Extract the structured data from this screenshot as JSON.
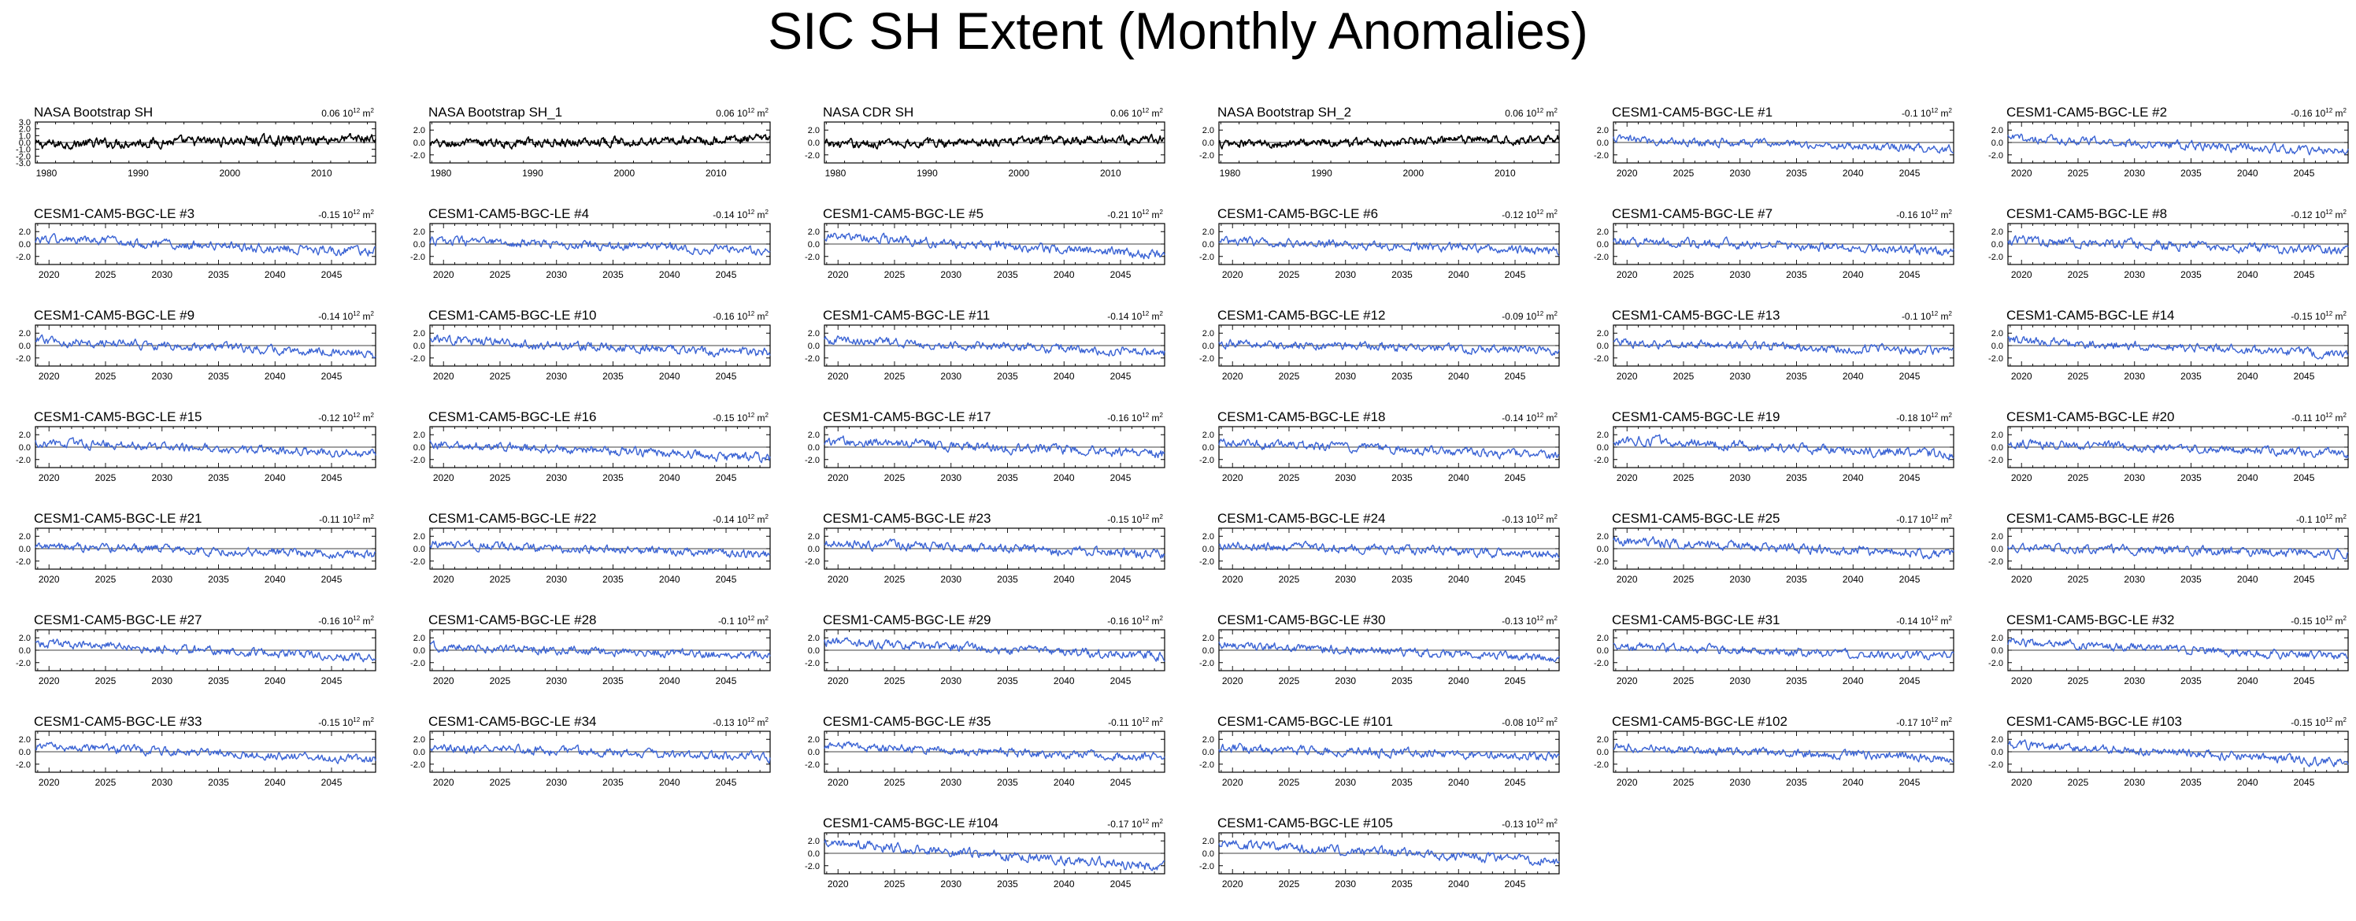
{
  "title": "SIC SH Extent (Monthly Anomalies)",
  "colors": {
    "observation_line": "#000000",
    "model_line": "#3a63d4",
    "axis": "#000000",
    "zero_line": "#000000"
  },
  "unit_base": "10",
  "unit_exp": "12",
  "unit_suffix": "m",
  "unit_suffix_exp": "2",
  "chart_data": [
    {
      "type": "line",
      "panel": "NASA Bootstrap SH",
      "trend": "0.06",
      "series_kind": "observation",
      "x_range": [
        1978.8,
        2015.9
      ],
      "y_range": [
        -3,
        3
      ],
      "xticks": [
        1980,
        1990,
        2000,
        2010
      ],
      "yticks": [
        3.0,
        2.0,
        1.0,
        0.0,
        -1.0,
        -2.0,
        -3.0
      ],
      "ytick_labels": [
        "3.0",
        "2.0",
        "1.0",
        "0.0",
        "-1.0",
        "-2.0",
        "-3.0"
      ],
      "start_value": -0.3,
      "end_value": 0.6,
      "amplitude": 0.55
    },
    {
      "type": "line",
      "panel": "NASA Bootstrap SH_1",
      "trend": "0.06",
      "series_kind": "observation",
      "x_range": [
        1978.8,
        2015.9
      ],
      "y_range": [
        -3.3,
        3.3
      ],
      "xticks": [
        1980,
        1990,
        2000,
        2010
      ],
      "yticks": [
        2.0,
        0.0,
        -2.0
      ],
      "ytick_labels": [
        "2.0",
        "0.0",
        "-2.0"
      ],
      "start_value": -0.3,
      "end_value": 0.6,
      "amplitude": 0.55
    },
    {
      "type": "line",
      "panel": "NASA CDR SH",
      "trend": "0.06",
      "series_kind": "observation",
      "x_range": [
        1978.8,
        2015.9
      ],
      "y_range": [
        -3.3,
        3.3
      ],
      "xticks": [
        1980,
        1990,
        2000,
        2010
      ],
      "yticks": [
        2.0,
        0.0,
        -2.0
      ],
      "ytick_labels": [
        "2.0",
        "0.0",
        "-2.0"
      ],
      "start_value": -0.3,
      "end_value": 0.6,
      "amplitude": 0.55
    },
    {
      "type": "line",
      "panel": "NASA Bootstrap SH_2",
      "trend": "0.06",
      "series_kind": "observation",
      "x_range": [
        1978.8,
        2015.9
      ],
      "y_range": [
        -3.3,
        3.3
      ],
      "xticks": [
        1980,
        1990,
        2000,
        2010
      ],
      "yticks": [
        2.0,
        0.0,
        -2.0
      ],
      "ytick_labels": [
        "2.0",
        "0.0",
        "-2.0"
      ],
      "start_value": -0.3,
      "end_value": 0.6,
      "amplitude": 0.55
    },
    {
      "type": "line",
      "panel": "CESM1-CAM5-BGC-LE #1",
      "trend": "-0.1",
      "series_kind": "model",
      "start_value": 0.5,
      "end_value": -1.0,
      "amplitude": 0.55
    },
    {
      "type": "line",
      "panel": "CESM1-CAM5-BGC-LE #2",
      "trend": "-0.16",
      "series_kind": "model",
      "start_value": 0.7,
      "end_value": -1.5,
      "amplitude": 0.55
    },
    {
      "type": "line",
      "panel": "CESM1-CAM5-BGC-LE #3",
      "trend": "-0.15",
      "series_kind": "model",
      "start_value": 0.8,
      "end_value": -1.2,
      "amplitude": 0.6
    },
    {
      "type": "line",
      "panel": "CESM1-CAM5-BGC-LE #4",
      "trend": "-0.14",
      "series_kind": "model",
      "start_value": 0.5,
      "end_value": -1.0,
      "amplitude": 0.55
    },
    {
      "type": "line",
      "panel": "CESM1-CAM5-BGC-LE #5",
      "trend": "-0.21",
      "series_kind": "model",
      "start_value": 1.2,
      "end_value": -1.7,
      "amplitude": 0.6
    },
    {
      "type": "line",
      "panel": "CESM1-CAM5-BGC-LE #6",
      "trend": "-0.12",
      "series_kind": "model",
      "start_value": 0.5,
      "end_value": -1.1,
      "amplitude": 0.55
    },
    {
      "type": "line",
      "panel": "CESM1-CAM5-BGC-LE #7",
      "trend": "-0.16",
      "series_kind": "model",
      "start_value": 0.6,
      "end_value": -1.2,
      "amplitude": 0.6
    },
    {
      "type": "line",
      "panel": "CESM1-CAM5-BGC-LE #8",
      "trend": "-0.12",
      "series_kind": "model",
      "start_value": 0.6,
      "end_value": -1.1,
      "amplitude": 0.6
    },
    {
      "type": "line",
      "panel": "CESM1-CAM5-BGC-LE #9",
      "trend": "-0.14",
      "series_kind": "model",
      "start_value": 0.8,
      "end_value": -1.3,
      "amplitude": 0.55
    },
    {
      "type": "line",
      "panel": "CESM1-CAM5-BGC-LE #10",
      "trend": "-0.16",
      "series_kind": "model",
      "start_value": 0.9,
      "end_value": -1.3,
      "amplitude": 0.6
    },
    {
      "type": "line",
      "panel": "CESM1-CAM5-BGC-LE #11",
      "trend": "-0.14",
      "series_kind": "model",
      "start_value": 0.9,
      "end_value": -1.2,
      "amplitude": 0.55
    },
    {
      "type": "line",
      "panel": "CESM1-CAM5-BGC-LE #12",
      "trend": "-0.09",
      "series_kind": "model",
      "start_value": 0.4,
      "end_value": -0.8,
      "amplitude": 0.55
    },
    {
      "type": "line",
      "panel": "CESM1-CAM5-BGC-LE #13",
      "trend": "-0.1",
      "series_kind": "model",
      "start_value": 0.5,
      "end_value": -0.9,
      "amplitude": 0.55
    },
    {
      "type": "line",
      "panel": "CESM1-CAM5-BGC-LE #14",
      "trend": "-0.15",
      "series_kind": "model",
      "start_value": 0.9,
      "end_value": -1.4,
      "amplitude": 0.55
    },
    {
      "type": "line",
      "panel": "CESM1-CAM5-BGC-LE #15",
      "trend": "-0.12",
      "series_kind": "model",
      "start_value": 0.7,
      "end_value": -1.0,
      "amplitude": 0.55
    },
    {
      "type": "line",
      "panel": "CESM1-CAM5-BGC-LE #16",
      "trend": "-0.15",
      "series_kind": "model",
      "start_value": 0.6,
      "end_value": -1.8,
      "amplitude": 0.6
    },
    {
      "type": "line",
      "panel": "CESM1-CAM5-BGC-LE #17",
      "trend": "-0.16",
      "series_kind": "model",
      "start_value": 1.0,
      "end_value": -1.1,
      "amplitude": 0.6
    },
    {
      "type": "line",
      "panel": "CESM1-CAM5-BGC-LE #18",
      "trend": "-0.14",
      "series_kind": "model",
      "start_value": 0.8,
      "end_value": -1.4,
      "amplitude": 0.55
    },
    {
      "type": "line",
      "panel": "CESM1-CAM5-BGC-LE #19",
      "trend": "-0.18",
      "series_kind": "model",
      "start_value": 1.2,
      "end_value": -1.3,
      "amplitude": 0.6
    },
    {
      "type": "line",
      "panel": "CESM1-CAM5-BGC-LE #20",
      "trend": "-0.11",
      "series_kind": "model",
      "start_value": 0.7,
      "end_value": -1.0,
      "amplitude": 0.55
    },
    {
      "type": "line",
      "panel": "CESM1-CAM5-BGC-LE #21",
      "trend": "-0.11",
      "series_kind": "model",
      "start_value": 0.4,
      "end_value": -1.0,
      "amplitude": 0.55
    },
    {
      "type": "line",
      "panel": "CESM1-CAM5-BGC-LE #22",
      "trend": "-0.14",
      "series_kind": "model",
      "start_value": 0.7,
      "end_value": -1.0,
      "amplitude": 0.55
    },
    {
      "type": "line",
      "panel": "CESM1-CAM5-BGC-LE #23",
      "trend": "-0.15",
      "series_kind": "model",
      "start_value": 0.9,
      "end_value": -0.9,
      "amplitude": 0.6
    },
    {
      "type": "line",
      "panel": "CESM1-CAM5-BGC-LE #24",
      "trend": "-0.13",
      "series_kind": "model",
      "start_value": 0.6,
      "end_value": -0.9,
      "amplitude": 0.55
    },
    {
      "type": "line",
      "panel": "CESM1-CAM5-BGC-LE #25",
      "trend": "-0.17",
      "series_kind": "model",
      "start_value": 1.3,
      "end_value": -1.0,
      "amplitude": 0.6
    },
    {
      "type": "line",
      "panel": "CESM1-CAM5-BGC-LE #26",
      "trend": "-0.1",
      "series_kind": "model",
      "start_value": 0.2,
      "end_value": -0.8,
      "amplitude": 0.55
    },
    {
      "type": "line",
      "panel": "CESM1-CAM5-BGC-LE #27",
      "trend": "-0.16",
      "series_kind": "model",
      "start_value": 1.2,
      "end_value": -1.2,
      "amplitude": 0.55
    },
    {
      "type": "line",
      "panel": "CESM1-CAM5-BGC-LE #28",
      "trend": "-0.1",
      "series_kind": "model",
      "start_value": 0.6,
      "end_value": -0.9,
      "amplitude": 0.55
    },
    {
      "type": "line",
      "panel": "CESM1-CAM5-BGC-LE #29",
      "trend": "-0.16",
      "series_kind": "model",
      "start_value": 1.3,
      "end_value": -0.9,
      "amplitude": 0.6
    },
    {
      "type": "line",
      "panel": "CESM1-CAM5-BGC-LE #30",
      "trend": "-0.13",
      "series_kind": "model",
      "start_value": 0.9,
      "end_value": -1.3,
      "amplitude": 0.55
    },
    {
      "type": "line",
      "panel": "CESM1-CAM5-BGC-LE #31",
      "trend": "-0.14",
      "series_kind": "model",
      "start_value": 0.6,
      "end_value": -1.0,
      "amplitude": 0.55
    },
    {
      "type": "line",
      "panel": "CESM1-CAM5-BGC-LE #32",
      "trend": "-0.15",
      "series_kind": "model",
      "start_value": 1.4,
      "end_value": -1.1,
      "amplitude": 0.55
    },
    {
      "type": "line",
      "panel": "CESM1-CAM5-BGC-LE #33",
      "trend": "-0.15",
      "series_kind": "model",
      "start_value": 0.9,
      "end_value": -1.3,
      "amplitude": 0.55
    },
    {
      "type": "line",
      "panel": "CESM1-CAM5-BGC-LE #34",
      "trend": "-0.13",
      "series_kind": "model",
      "start_value": 0.7,
      "end_value": -0.9,
      "amplitude": 0.55
    },
    {
      "type": "line",
      "panel": "CESM1-CAM5-BGC-LE #35",
      "trend": "-0.11",
      "series_kind": "model",
      "start_value": 0.8,
      "end_value": -0.9,
      "amplitude": 0.55
    },
    {
      "type": "line",
      "panel": "CESM1-CAM5-BGC-LE #101",
      "trend": "-0.08",
      "series_kind": "model",
      "start_value": 0.6,
      "end_value": -0.9,
      "amplitude": 0.55
    },
    {
      "type": "line",
      "panel": "CESM1-CAM5-BGC-LE #102",
      "trend": "-0.17",
      "series_kind": "model",
      "start_value": 0.7,
      "end_value": -1.0,
      "amplitude": 0.55
    },
    {
      "type": "line",
      "panel": "CESM1-CAM5-BGC-LE #103",
      "trend": "-0.15",
      "series_kind": "model",
      "start_value": 1.2,
      "end_value": -1.7,
      "amplitude": 0.55
    },
    {
      "type": "line",
      "panel": "CESM1-CAM5-BGC-LE #104",
      "trend": "-0.17",
      "series_kind": "model",
      "start_value": 1.7,
      "end_value": -2.2,
      "amplitude": 0.6
    },
    {
      "type": "line",
      "panel": "CESM1-CAM5-BGC-LE #105",
      "trend": "-0.13",
      "series_kind": "model",
      "start_value": 1.5,
      "end_value": -1.3,
      "amplitude": 0.6
    }
  ],
  "model_axes": {
    "x_range": [
      2018.8,
      2048.9
    ],
    "xticks": [
      2020,
      2025,
      2030,
      2035,
      2040,
      2045
    ],
    "y_range": [
      -3.3,
      3.3
    ],
    "yticks": [
      2.0,
      0.0,
      -2.0
    ],
    "ytick_labels": [
      "2.0",
      "0.0",
      "-2.0"
    ]
  }
}
